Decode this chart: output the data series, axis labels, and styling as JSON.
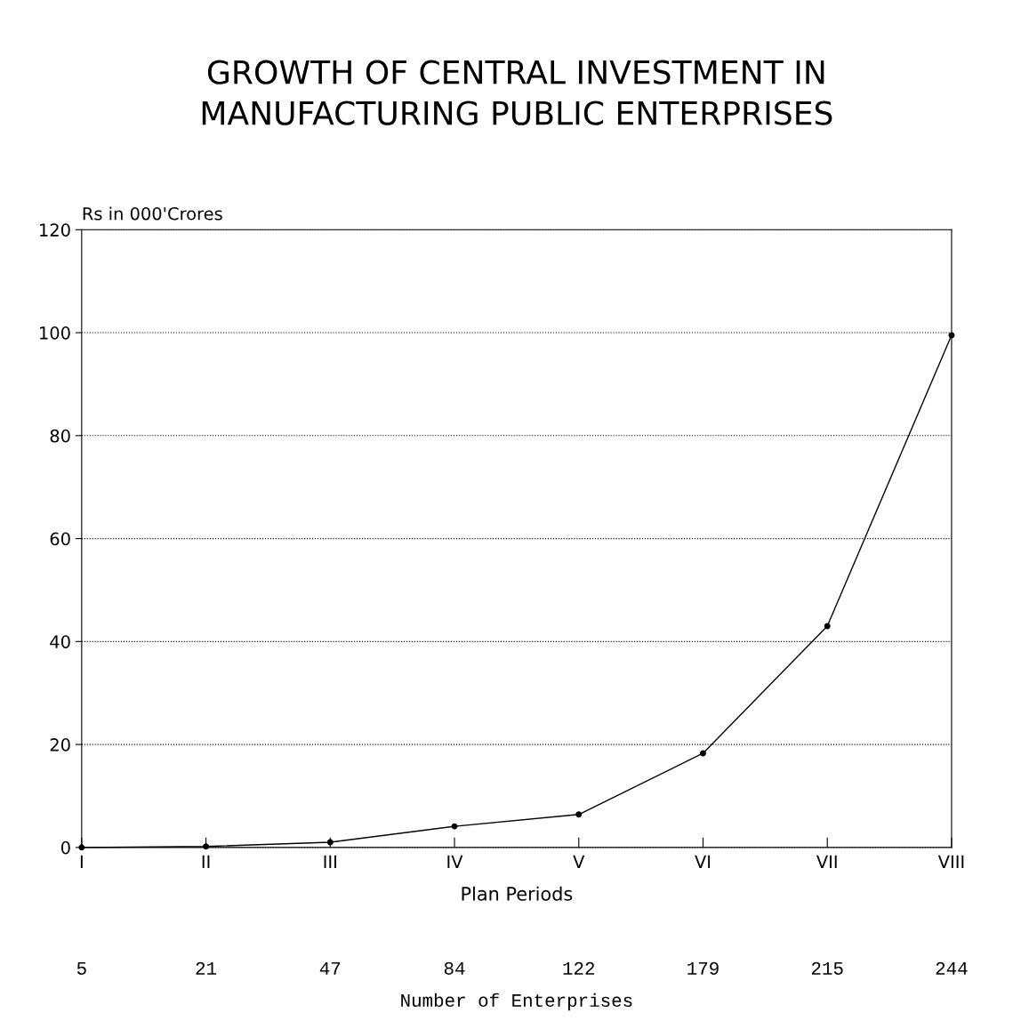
{
  "chart_data": {
    "type": "line",
    "title": "GROWTH OF CENTRAL INVESTMENT IN\nMANUFACTURING PUBLIC ENTERPRISES",
    "ylabel": "Rs in 000'Crores",
    "xlabel": "Plan Periods",
    "categories": [
      "I",
      "II",
      "III",
      "IV",
      "V",
      "VI",
      "VII",
      "VIII"
    ],
    "series": [
      {
        "color": "#000000",
        "values": [
          0,
          0.2,
          1,
          4.1,
          6.4,
          18.3,
          43,
          99.5
        ]
      }
    ],
    "ylim": [
      0,
      120
    ],
    "yticks": [
      0,
      20,
      40,
      60,
      80,
      100,
      120
    ],
    "annotations": [
      "5",
      "21",
      "47",
      "84",
      "122",
      "179",
      "215",
      "244",
      "Number of Enterprises"
    ],
    "grid": "y",
    "marker": "circle",
    "line_style": "solid"
  }
}
